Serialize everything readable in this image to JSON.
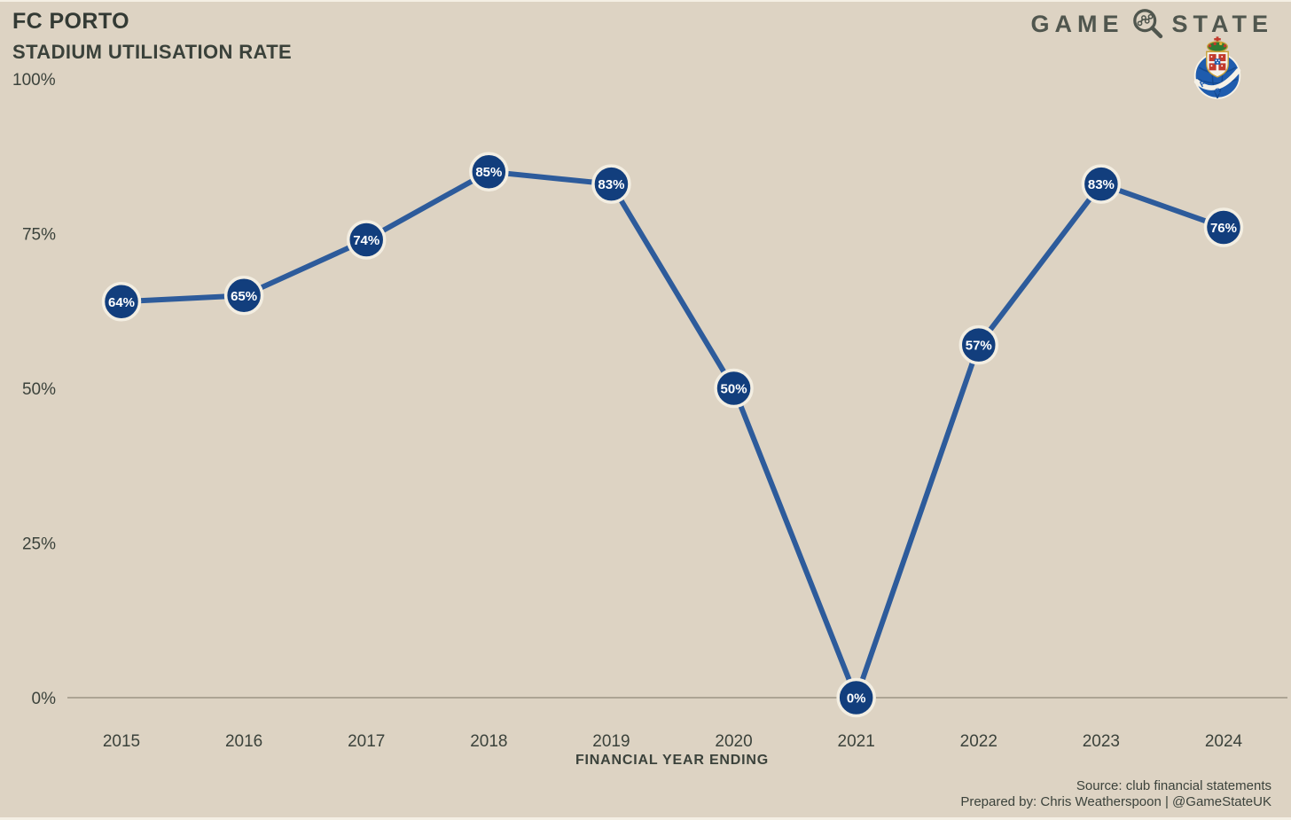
{
  "header": {
    "title": "FC PORTO",
    "subtitle": "STADIUM UTILISATION RATE"
  },
  "logo": {
    "word_left": "GAME",
    "word_right": "STATE",
    "magnifier_icon": "magnifying-glass-with-line-chart",
    "crest_icon": "fc-porto-club-crest",
    "crest_letters": "F C P"
  },
  "chart_data": {
    "type": "line",
    "x": [
      "2015",
      "2016",
      "2017",
      "2018",
      "2019",
      "2020",
      "2021",
      "2022",
      "2023",
      "2024"
    ],
    "values": [
      64,
      65,
      74,
      85,
      83,
      50,
      0,
      57,
      83,
      76
    ],
    "point_labels": [
      "64%",
      "65%",
      "74%",
      "85%",
      "83%",
      "50%",
      "0%",
      "57%",
      "83%",
      "76%"
    ],
    "yticks": [
      {
        "value": 100,
        "label": "100%"
      },
      {
        "value": 75,
        "label": "75%"
      },
      {
        "value": 50,
        "label": "50%"
      },
      {
        "value": 25,
        "label": "25%"
      },
      {
        "value": 0,
        "label": "0%"
      }
    ],
    "title": "FC PORTO — STADIUM UTILISATION RATE",
    "xlabel": "FINANCIAL YEAR ENDING",
    "ylabel": "",
    "ylim": [
      0,
      100
    ],
    "grid": false,
    "legend": "none",
    "colors": {
      "background": "#ddd3c3",
      "line": "#2d5b9b",
      "point_fill": "#123e7d",
      "point_ring": "#f3eee2",
      "point_text": "#ffffff",
      "axis_line": "#8e8779",
      "tick_text": "#3b423b"
    }
  },
  "footer": {
    "source": "Source: club financial statements",
    "prepared_by": "Prepared by: Chris Weatherspoon | @GameStateUK"
  }
}
